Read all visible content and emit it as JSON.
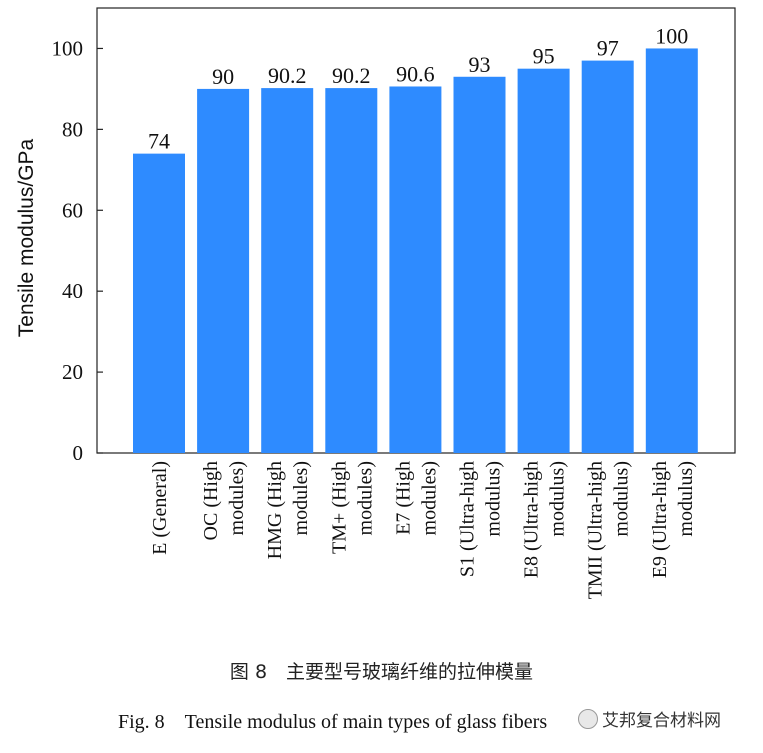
{
  "chart_data": {
    "type": "bar",
    "ylabel": "Tensile modulus/GPa",
    "ylim": [
      0,
      110
    ],
    "yticks": [
      0,
      20,
      40,
      60,
      80,
      100
    ],
    "categories": [
      [
        "E (General)"
      ],
      [
        "OC (High",
        "modules)"
      ],
      [
        "HMG (High",
        "modules)"
      ],
      [
        "TM+ (High",
        "modules)"
      ],
      [
        "E7 (High",
        "modules)"
      ],
      [
        "S1 (Ultra-high",
        "modulus)"
      ],
      [
        "E8 (Ultra-high",
        "modulus)"
      ],
      [
        "TMII (Ultra-high",
        "modulus)"
      ],
      [
        "E9 (Ultra-high",
        "modulus)"
      ]
    ],
    "values": [
      74,
      90,
      90.2,
      90.2,
      90.6,
      93,
      95,
      97,
      100
    ],
    "data_labels": [
      "74",
      "90",
      "90.2",
      "90.2",
      "90.6",
      "93",
      "95",
      "97",
      "100"
    ],
    "bar_color": "#2e8bff",
    "grid": false
  },
  "caption": {
    "chinese": "图 8　主要型号玻璃纤维的拉伸模量",
    "english": "Fig. 8　Tensile modulus of main types of glass fibers"
  },
  "watermark": {
    "text": "艾邦复合材料网"
  }
}
